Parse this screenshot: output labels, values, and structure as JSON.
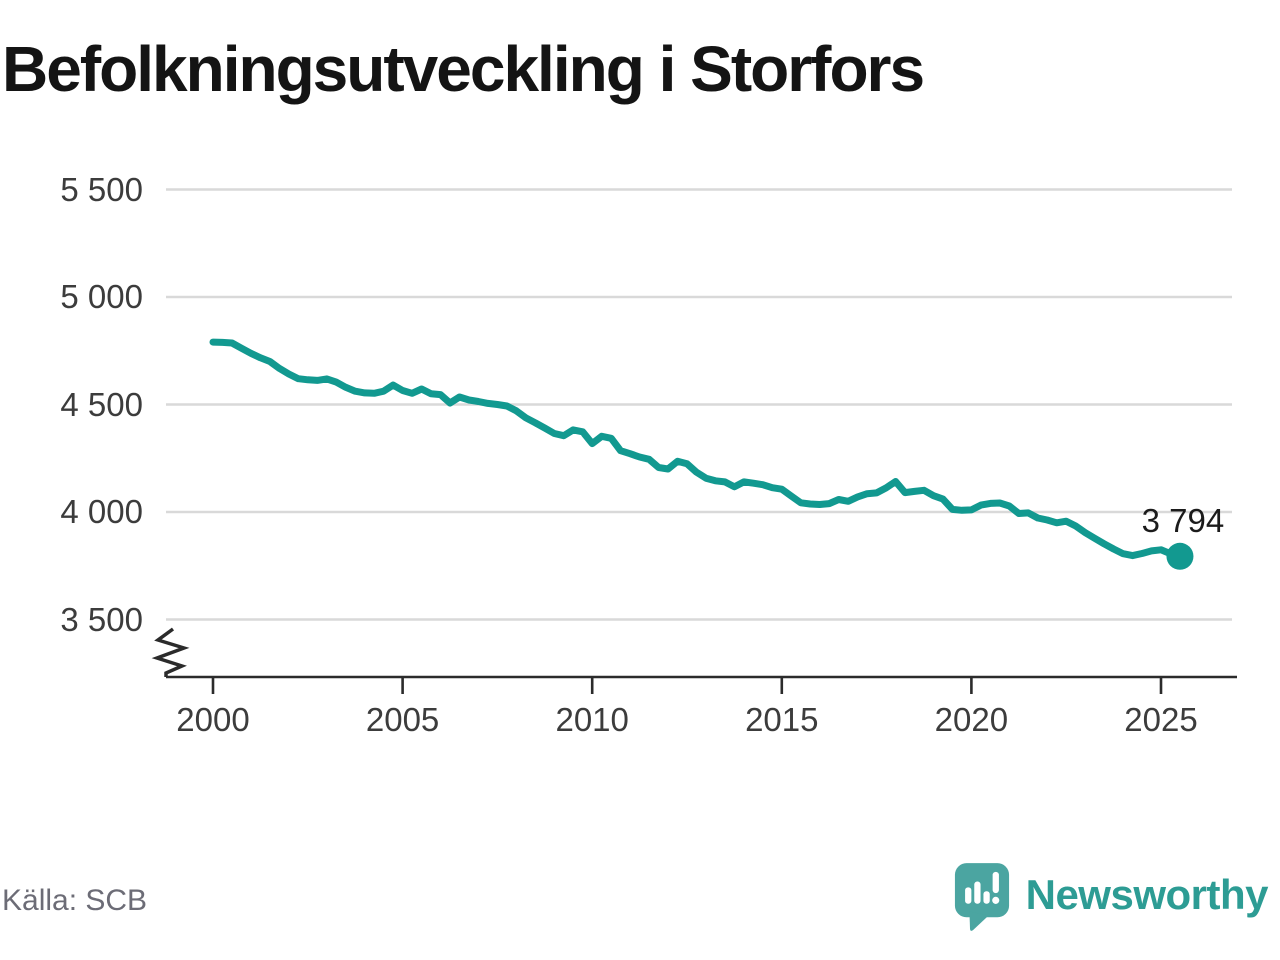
{
  "title": "Befolkningsutveckling i Storfors",
  "source": "Källa: SCB",
  "brand": {
    "name": "Newsworthy",
    "icon": "speech-bubble-bar-chart-icon",
    "mark_color": "#4BA5A1",
    "wordmark_color": "#2D9C94"
  },
  "chart_data": {
    "type": "line",
    "series_name": "Befolkning i Storfors",
    "x_start": 2000,
    "x_step": 0.25,
    "x_unit": "år (kvartalsdata)",
    "values": [
      4790,
      4789,
      4786,
      4762,
      4738,
      4717,
      4700,
      4668,
      4642,
      4620,
      4615,
      4612,
      4619,
      4604,
      4580,
      4562,
      4554,
      4552,
      4562,
      4590,
      4565,
      4552,
      4572,
      4550,
      4546,
      4507,
      4535,
      4521,
      4514,
      4505,
      4500,
      4493,
      4470,
      4438,
      4415,
      4390,
      4365,
      4355,
      4382,
      4373,
      4318,
      4352,
      4343,
      4285,
      4271,
      4256,
      4245,
      4207,
      4200,
      4236,
      4224,
      4185,
      4157,
      4145,
      4140,
      4117,
      4140,
      4134,
      4127,
      4113,
      4106,
      4074,
      4043,
      4037,
      4035,
      4039,
      4058,
      4050,
      4070,
      4085,
      4089,
      4112,
      4142,
      4090,
      4096,
      4101,
      4076,
      4060,
      4012,
      4008,
      4010,
      4032,
      4040,
      4042,
      4028,
      3993,
      3996,
      3972,
      3963,
      3950,
      3957,
      3935,
      3904,
      3878,
      3852,
      3828,
      3806,
      3797,
      3807,
      3819,
      3824,
      3806,
      3794
    ],
    "end_value": 3794,
    "end_label": "3 794",
    "xticks": [
      2000,
      2005,
      2010,
      2015,
      2020,
      2025
    ],
    "xtick_labels": [
      "2000",
      "2005",
      "2010",
      "2015",
      "2020",
      "2025"
    ],
    "yticks": [
      3500,
      4000,
      4500,
      5000,
      5500
    ],
    "ytick_labels": [
      "3 500",
      "4 000",
      "4 500",
      "5 000",
      "5 500"
    ],
    "xlim": [
      2000,
      2025.6
    ],
    "ylim": [
      3500,
      5500
    ],
    "axis_break": true,
    "grid": true,
    "legend": "none",
    "line_color": "#129990",
    "grid_color": "#d9d9d9",
    "axis_color": "#2b2b2b"
  }
}
